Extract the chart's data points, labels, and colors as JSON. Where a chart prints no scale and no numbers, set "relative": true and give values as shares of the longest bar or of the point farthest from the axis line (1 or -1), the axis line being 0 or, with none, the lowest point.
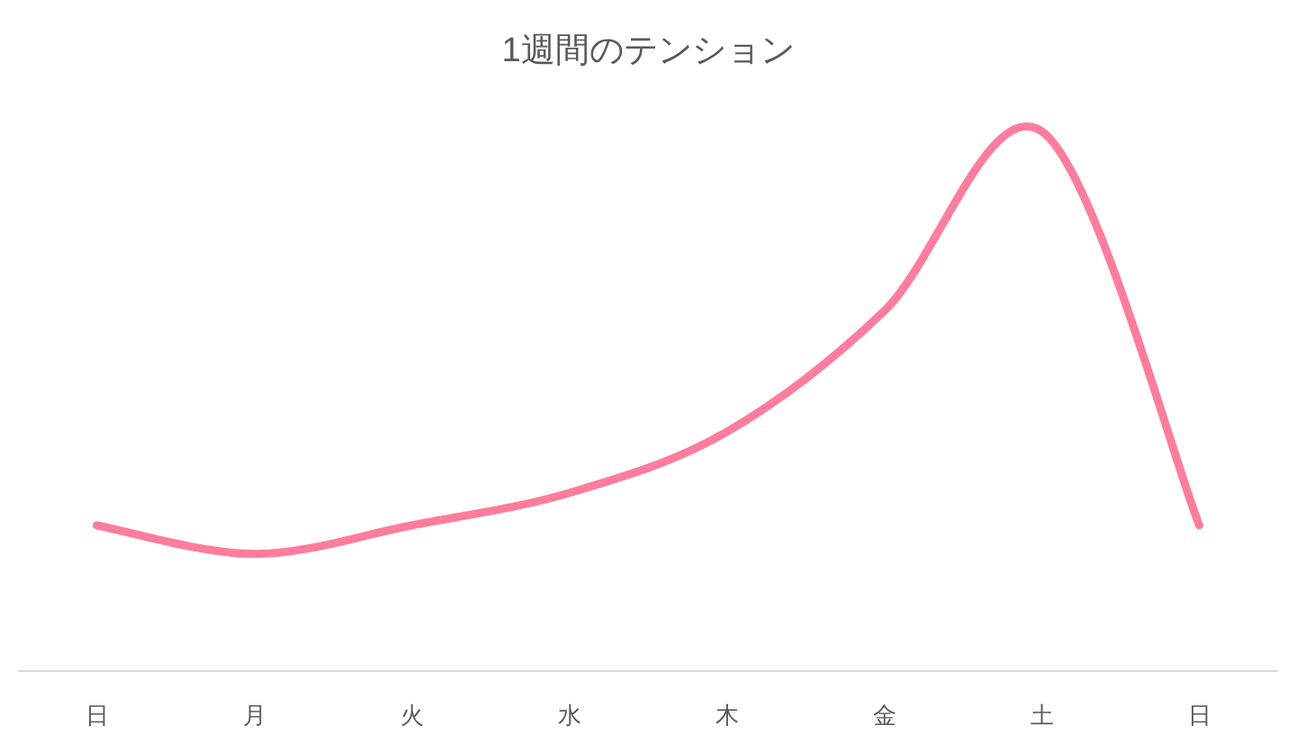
{
  "chart_data": {
    "type": "line",
    "title": "1週間のテンション",
    "categories": [
      "日",
      "月",
      "火",
      "水",
      "木",
      "金",
      "土",
      "日"
    ],
    "relative": true,
    "series": [
      {
        "color": "#ff7c9c",
        "values": [
          0.27,
          0.217,
          0.27,
          0.33,
          0.443,
          0.667,
          1,
          0.27
        ]
      }
    ],
    "grid": false,
    "marker": "none"
  }
}
